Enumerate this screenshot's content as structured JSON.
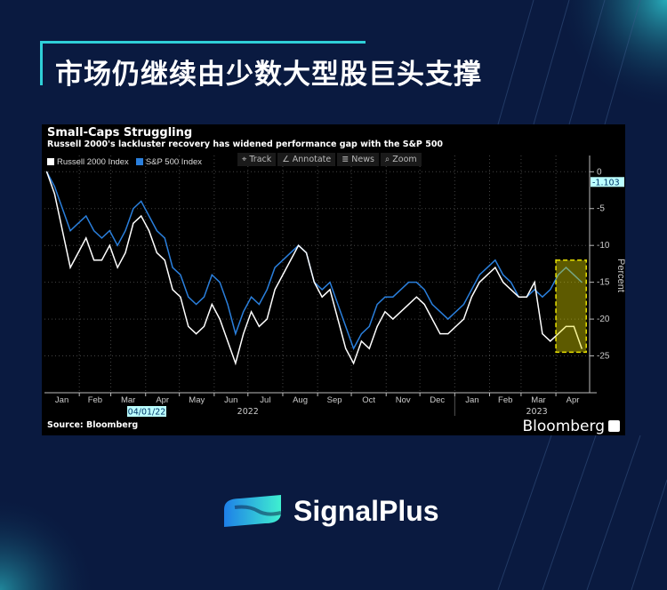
{
  "header": {
    "title": "市场仍继续由少数大型股巨头支撑"
  },
  "brand": {
    "name": "SignalPlus",
    "accent": "#2fd0d8"
  },
  "toolbar": [
    "Track",
    "Annotate",
    "News",
    "Zoom"
  ],
  "chart_data": {
    "type": "line",
    "title": "Small-Caps Struggling",
    "subtitle": "Russell 2000's lackluster recovery has widened performance gap with the S&P 500",
    "ylabel": "Percent",
    "ylim": [
      -30,
      1
    ],
    "yticks": [
      0,
      -5,
      -10,
      -15,
      -20,
      -25
    ],
    "ytick_labels": [
      "0",
      "-5",
      "-10",
      "-15",
      "-20",
      "-25"
    ],
    "xlim": [
      "2022-01-01",
      "2023-05-01"
    ],
    "x_month_labels": [
      "Jan",
      "Feb",
      "Mar",
      "Apr",
      "May",
      "Jun",
      "Jul",
      "Aug",
      "Sep",
      "Oct",
      "Nov",
      "Dec",
      "Jan",
      "Feb",
      "Mar",
      "Apr"
    ],
    "x_year_labels": [
      "2022",
      "2023"
    ],
    "cursor_date_label": "04/01/22",
    "last_value_label": "-1.103",
    "source": "Source: Bloomberg",
    "watermark": "Bloomberg",
    "legend_placement": "top-left",
    "grid": true,
    "highlight": {
      "x": [
        "2023-04-01",
        "2023-04-28"
      ],
      "y": [
        -12,
        -24.5
      ],
      "color": "#e8e000"
    },
    "x": [
      "2022-01-03",
      "2022-01-10",
      "2022-01-17",
      "2022-01-24",
      "2022-01-31",
      "2022-02-07",
      "2022-02-14",
      "2022-02-21",
      "2022-02-28",
      "2022-03-07",
      "2022-03-14",
      "2022-03-21",
      "2022-03-28",
      "2022-04-04",
      "2022-04-11",
      "2022-04-18",
      "2022-04-25",
      "2022-05-02",
      "2022-05-09",
      "2022-05-16",
      "2022-05-23",
      "2022-05-30",
      "2022-06-06",
      "2022-06-13",
      "2022-06-20",
      "2022-06-27",
      "2022-07-04",
      "2022-07-11",
      "2022-07-18",
      "2022-07-25",
      "2022-08-01",
      "2022-08-08",
      "2022-08-15",
      "2022-08-22",
      "2022-08-29",
      "2022-09-05",
      "2022-09-12",
      "2022-09-19",
      "2022-09-26",
      "2022-10-03",
      "2022-10-10",
      "2022-10-17",
      "2022-10-24",
      "2022-10-31",
      "2022-11-07",
      "2022-11-14",
      "2022-11-21",
      "2022-11-28",
      "2022-12-05",
      "2022-12-12",
      "2022-12-19",
      "2022-12-26",
      "2023-01-02",
      "2023-01-09",
      "2023-01-16",
      "2023-01-23",
      "2023-01-30",
      "2023-02-06",
      "2023-02-13",
      "2023-02-20",
      "2023-02-27",
      "2023-03-06",
      "2023-03-13",
      "2023-03-20",
      "2023-03-27",
      "2023-04-03",
      "2023-04-10",
      "2023-04-17",
      "2023-04-24"
    ],
    "series": [
      {
        "name": "Russell 2000 Index",
        "color": "#ffffff",
        "values": [
          0,
          -3,
          -8,
          -13,
          -11,
          -9,
          -12,
          -12,
          -10,
          -13,
          -11,
          -7,
          -6,
          -8,
          -11,
          -12,
          -16,
          -17,
          -21,
          -22,
          -21,
          -18,
          -20,
          -23,
          -26,
          -22,
          -19,
          -21,
          -20,
          -16,
          -14,
          -12,
          -10,
          -11,
          -15,
          -17,
          -16,
          -20,
          -24,
          -26,
          -23,
          -24,
          -21,
          -19,
          -20,
          -19,
          -18,
          -17,
          -18,
          -20,
          -22,
          -22,
          -21,
          -20,
          -17,
          -15,
          -14,
          -13,
          -15,
          -16,
          -17,
          -17,
          -15,
          -22,
          -23,
          -22,
          -21,
          -21,
          -24
        ]
      },
      {
        "name": "S&P 500 Index",
        "color": "#2a7fdc",
        "values": [
          0,
          -2,
          -5,
          -8,
          -7,
          -6,
          -8,
          -9,
          -8,
          -10,
          -8,
          -5,
          -4,
          -6,
          -8,
          -9,
          -13,
          -14,
          -17,
          -18,
          -17,
          -14,
          -15,
          -18,
          -22,
          -19,
          -17,
          -18,
          -16,
          -13,
          -12,
          -11,
          -10,
          -11,
          -15,
          -16,
          -15,
          -18,
          -21,
          -24,
          -22,
          -21,
          -18,
          -17,
          -17,
          -16,
          -15,
          -15,
          -16,
          -18,
          -19,
          -20,
          -19,
          -18,
          -16,
          -14,
          -13,
          -12,
          -14,
          -15,
          -17,
          -17,
          -16,
          -17,
          -16,
          -14,
          -13,
          -14,
          -15
        ]
      }
    ]
  }
}
